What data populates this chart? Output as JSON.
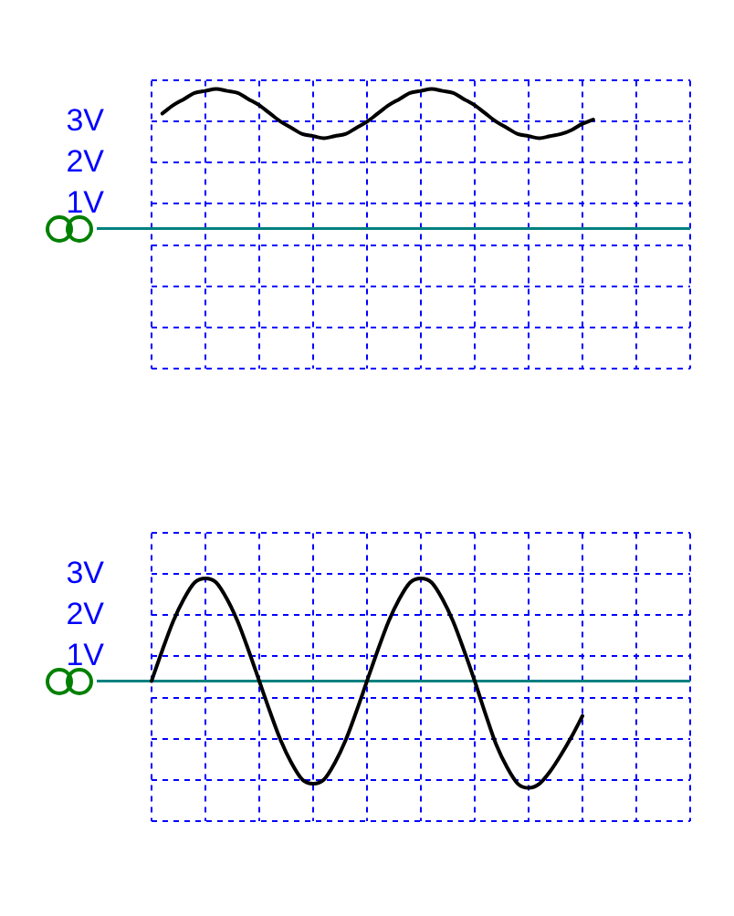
{
  "chart_data": [
    {
      "type": "line",
      "categories": [
        null,
        null,
        null,
        null,
        null,
        null,
        null,
        null,
        null,
        null,
        null,
        null,
        null,
        null,
        null,
        null,
        null,
        null,
        null,
        null,
        null,
        null,
        null,
        null,
        null,
        null,
        null,
        null,
        null,
        null,
        null,
        null,
        null,
        null,
        null,
        null,
        null,
        null,
        null,
        null,
        null,
        null,
        null,
        null,
        null,
        null,
        null,
        null,
        null,
        null,
        null
      ],
      "values": [
        null,
        3.2,
        3.4,
        3.55,
        3.7,
        3.75,
        3.8,
        3.75,
        3.7,
        3.55,
        3.4,
        3.2,
        3.0,
        2.85,
        2.7,
        2.65,
        2.6,
        2.65,
        2.7,
        2.85,
        3.0,
        3.2,
        3.4,
        3.55,
        3.7,
        3.75,
        3.8,
        3.75,
        3.7,
        3.55,
        3.4,
        3.2,
        3.0,
        2.85,
        2.7,
        2.65,
        2.6,
        2.65,
        2.7,
        2.8,
        2.95,
        3.05,
        null,
        null,
        null,
        null,
        null,
        null,
        null,
        null,
        null
      ],
      "color": "#000000",
      "ylim": [
        -3,
        4
      ],
      "yticks": [
        {
          "value": -3,
          "label": null
        },
        {
          "value": -2,
          "label": null
        },
        {
          "value": -1,
          "label": null
        },
        {
          "value": 0,
          "label": null
        },
        {
          "value": 1,
          "label": "1V"
        },
        {
          "value": 2,
          "label": "2V"
        },
        {
          "value": 3,
          "label": "3V"
        },
        {
          "value": 4,
          "label": null
        }
      ],
      "grid": true,
      "tick_labels": "y",
      "ref_lines": [
        {
          "axis": "y",
          "value": 0.4,
          "color": "#008080"
        }
      ]
    },
    {
      "type": "line",
      "categories": [
        null,
        null,
        null,
        null,
        null,
        null,
        null,
        null,
        null,
        null,
        null,
        null,
        null,
        null,
        null,
        null,
        null,
        null,
        null,
        null,
        null,
        null,
        null,
        null,
        null,
        null,
        null,
        null,
        null,
        null,
        null,
        null,
        null,
        null,
        null,
        null,
        null,
        null,
        null,
        null,
        null,
        null,
        null,
        null,
        null,
        null,
        null,
        null,
        null,
        null,
        null
      ],
      "values": [
        0.4,
        1.15,
        1.85,
        2.4,
        2.8,
        2.9,
        2.8,
        2.4,
        1.85,
        1.15,
        0.4,
        -0.35,
        -1.05,
        -1.6,
        -2.0,
        -2.1,
        -2.0,
        -1.6,
        -1.05,
        -0.35,
        0.4,
        1.15,
        1.85,
        2.4,
        2.8,
        2.9,
        2.8,
        2.4,
        1.85,
        1.15,
        0.4,
        -0.4,
        -1.15,
        -1.7,
        -2.1,
        -2.2,
        -2.1,
        -1.8,
        -1.4,
        -0.95,
        -0.45,
        null,
        null,
        null,
        null,
        null,
        null,
        null,
        null,
        null,
        null
      ],
      "color": "#000000",
      "ylim": [
        -3,
        4
      ],
      "yticks": [
        {
          "value": -3,
          "label": null
        },
        {
          "value": -2,
          "label": null
        },
        {
          "value": -1,
          "label": null
        },
        {
          "value": 0,
          "label": null
        },
        {
          "value": 1,
          "label": "1V"
        },
        {
          "value": 2,
          "label": "2V"
        },
        {
          "value": 3,
          "label": "3V"
        },
        {
          "value": 4,
          "label": null
        }
      ],
      "grid": true,
      "tick_labels": "y",
      "ref_lines": [
        {
          "axis": "y",
          "value": 0.4,
          "color": "#008080"
        }
      ]
    }
  ]
}
